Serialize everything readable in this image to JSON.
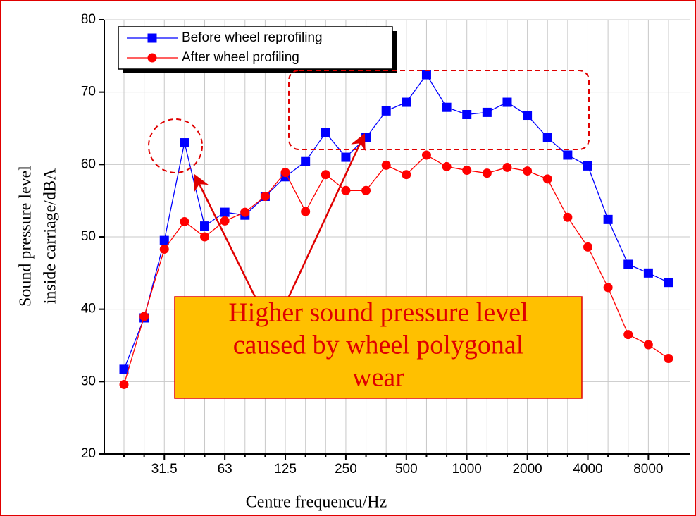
{
  "chart_data": {
    "type": "line",
    "ylabel": [
      "Sound pressure level",
      "inside carriage/dBA"
    ],
    "xlabel": "Centre frequencu/Hz",
    "categories": [
      null,
      null,
      "31.5",
      null,
      null,
      "63",
      null,
      null,
      "125",
      null,
      null,
      "250",
      null,
      null,
      "500",
      null,
      null,
      "1000",
      null,
      null,
      "2000",
      null,
      null,
      "4000",
      null,
      null,
      "8000",
      null
    ],
    "series": [
      {
        "name": "Before wheel reprofiling",
        "color": "#0000ff",
        "marker": "square",
        "values": [
          31.7,
          38.8,
          49.5,
          63.0,
          51.5,
          53.4,
          53.0,
          55.6,
          58.3,
          60.4,
          64.4,
          61.0,
          63.7,
          67.4,
          68.6,
          72.4,
          67.9,
          66.9,
          67.2,
          68.6,
          66.8,
          63.7,
          61.3,
          59.8,
          52.4,
          46.2,
          45.0,
          43.7
        ]
      },
      {
        "name": "After wheel profiling",
        "color": "#ff0000",
        "marker": "circle",
        "values": [
          29.6,
          39.0,
          48.3,
          52.1,
          50.0,
          52.2,
          53.4,
          55.6,
          58.9,
          53.5,
          58.6,
          56.4,
          56.4,
          59.9,
          58.6,
          61.3,
          59.7,
          59.2,
          58.8,
          59.6,
          59.1,
          58.0,
          52.7,
          48.6,
          43.0,
          36.5,
          35.1,
          33.2
        ]
      }
    ],
    "ylim": [
      20,
      80
    ],
    "yticks": [
      20,
      30,
      40,
      50,
      60,
      70,
      80
    ],
    "grid": true,
    "legend": "upper left",
    "annotation": [
      "Higher sound pressure level",
      "caused by wheel polygonal",
      "wear"
    ]
  }
}
